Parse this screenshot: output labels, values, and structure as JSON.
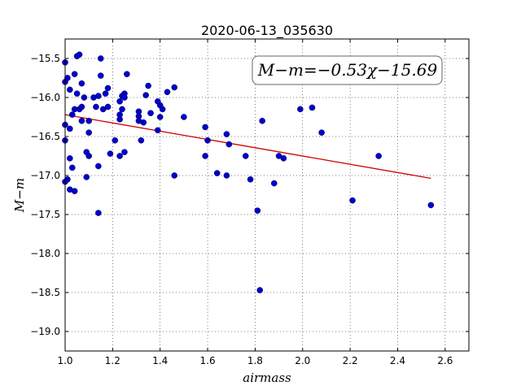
{
  "chart_data": {
    "type": "scatter",
    "title": "2020-06-13_035630",
    "xlabel": "airmass",
    "ylabel": "M−m",
    "xlim": [
      1.0,
      2.7
    ],
    "ylim": [
      -19.25,
      -15.25
    ],
    "xticks": [
      1.0,
      1.2,
      1.4,
      1.6,
      1.8,
      2.0,
      2.2,
      2.4,
      2.6
    ],
    "xtick_labels": [
      "1.0",
      "1.2",
      "1.4",
      "1.6",
      "1.8",
      "2.0",
      "2.2",
      "2.4",
      "2.6"
    ],
    "yticks": [
      -15.5,
      -16.0,
      -16.5,
      -17.0,
      -17.5,
      -18.0,
      -18.5,
      -19.0
    ],
    "ytick_labels": [
      "−15.5",
      "−16.0",
      "−16.5",
      "−17.0",
      "−17.5",
      "−18.0",
      "−18.5",
      "−19.0"
    ],
    "grid": true,
    "annotation": "M−m=−0.53χ−15.69",
    "fit": {
      "slope": -0.53,
      "intercept": -15.69,
      "x_range": [
        1.0,
        2.54
      ],
      "color": "#cc0000"
    },
    "point_color": "#0000cc",
    "points": [
      [
        1.0,
        -15.55
      ],
      [
        1.0,
        -15.8
      ],
      [
        1.01,
        -15.75
      ],
      [
        1.0,
        -16.35
      ],
      [
        1.0,
        -16.55
      ],
      [
        1.01,
        -17.05
      ],
      [
        1.0,
        -17.08
      ],
      [
        1.02,
        -16.4
      ],
      [
        1.02,
        -16.78
      ],
      [
        1.02,
        -17.18
      ],
      [
        1.03,
        -16.9
      ],
      [
        1.04,
        -17.2
      ],
      [
        1.04,
        -15.7
      ],
      [
        1.05,
        -15.47
      ],
      [
        1.06,
        -15.45
      ],
      [
        1.02,
        -15.9
      ],
      [
        1.05,
        -15.95
      ],
      [
        1.07,
        -15.82
      ],
      [
        1.04,
        -16.15
      ],
      [
        1.06,
        -16.15
      ],
      [
        1.07,
        -16.12
      ],
      [
        1.03,
        -16.22
      ],
      [
        1.07,
        -16.3
      ],
      [
        1.08,
        -16.0
      ],
      [
        1.1,
        -16.3
      ],
      [
        1.09,
        -16.7
      ],
      [
        1.1,
        -16.75
      ],
      [
        1.09,
        -17.02
      ],
      [
        1.1,
        -16.45
      ],
      [
        1.12,
        -16.0
      ],
      [
        1.13,
        -16.12
      ],
      [
        1.14,
        -15.98
      ],
      [
        1.15,
        -15.5
      ],
      [
        1.15,
        -15.72
      ],
      [
        1.16,
        -16.15
      ],
      [
        1.17,
        -15.95
      ],
      [
        1.18,
        -15.88
      ],
      [
        1.18,
        -16.12
      ],
      [
        1.19,
        -16.72
      ],
      [
        1.14,
        -16.88
      ],
      [
        1.14,
        -17.48
      ],
      [
        1.21,
        -16.55
      ],
      [
        1.23,
        -16.05
      ],
      [
        1.23,
        -16.22
      ],
      [
        1.23,
        -16.28
      ],
      [
        1.24,
        -16.15
      ],
      [
        1.24,
        -15.98
      ],
      [
        1.25,
        -15.95
      ],
      [
        1.25,
        -16.0
      ],
      [
        1.26,
        -15.7
      ],
      [
        1.23,
        -16.75
      ],
      [
        1.25,
        -16.7
      ],
      [
        1.31,
        -16.18
      ],
      [
        1.31,
        -16.24
      ],
      [
        1.31,
        -16.3
      ],
      [
        1.32,
        -16.55
      ],
      [
        1.33,
        -16.32
      ],
      [
        1.34,
        -15.97
      ],
      [
        1.35,
        -15.85
      ],
      [
        1.36,
        -16.2
      ],
      [
        1.39,
        -16.05
      ],
      [
        1.4,
        -16.1
      ],
      [
        1.41,
        -16.15
      ],
      [
        1.4,
        -16.25
      ],
      [
        1.39,
        -16.42
      ],
      [
        1.43,
        -15.93
      ],
      [
        1.46,
        -15.87
      ],
      [
        1.46,
        -17.0
      ],
      [
        1.5,
        -16.25
      ],
      [
        1.59,
        -16.38
      ],
      [
        1.6,
        -16.55
      ],
      [
        1.59,
        -16.75
      ],
      [
        1.64,
        -16.97
      ],
      [
        1.68,
        -16.47
      ],
      [
        1.69,
        -16.6
      ],
      [
        1.68,
        -17.0
      ],
      [
        1.76,
        -16.75
      ],
      [
        1.78,
        -17.05
      ],
      [
        1.81,
        -17.45
      ],
      [
        1.82,
        -18.47
      ],
      [
        1.83,
        -16.3
      ],
      [
        1.88,
        -17.1
      ],
      [
        1.9,
        -16.75
      ],
      [
        1.92,
        -16.78
      ],
      [
        1.99,
        -16.15
      ],
      [
        2.04,
        -16.13
      ],
      [
        2.08,
        -16.45
      ],
      [
        2.21,
        -17.32
      ],
      [
        2.32,
        -16.75
      ],
      [
        2.54,
        -17.38
      ]
    ]
  }
}
